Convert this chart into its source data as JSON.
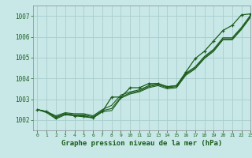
{
  "title": "Graphe pression niveau de la mer (hPa)",
  "bg_color": "#c8e8e8",
  "grid_color": "#a8cccc",
  "line_color": "#1a5c1a",
  "xlim": [
    -0.5,
    23
  ],
  "ylim": [
    1001.5,
    1007.5
  ],
  "yticks": [
    1002,
    1003,
    1004,
    1005,
    1006,
    1007
  ],
  "xticks": [
    0,
    1,
    2,
    3,
    4,
    5,
    6,
    7,
    8,
    9,
    10,
    11,
    12,
    13,
    14,
    15,
    16,
    17,
    18,
    19,
    20,
    21,
    22,
    23
  ],
  "line_main": [
    1002.5,
    1002.4,
    1002.1,
    1002.3,
    1002.2,
    1002.2,
    1002.1,
    1002.4,
    1003.1,
    1003.1,
    1003.55,
    1003.55,
    1003.75,
    1003.75,
    1003.6,
    1003.65,
    1004.3,
    1004.95,
    1005.3,
    1005.8,
    1006.3,
    1006.55,
    1007.05,
    1007.1
  ],
  "line_a": [
    1002.5,
    1002.4,
    1002.15,
    1002.3,
    1002.25,
    1002.25,
    1002.15,
    1002.45,
    1002.55,
    1003.1,
    1003.3,
    1003.4,
    1003.6,
    1003.7,
    1003.55,
    1003.6,
    1004.2,
    1004.5,
    1005.0,
    1005.35,
    1005.9,
    1005.9,
    1006.4,
    1007.0
  ],
  "line_b": [
    1002.5,
    1002.4,
    1002.2,
    1002.35,
    1002.3,
    1002.3,
    1002.2,
    1002.5,
    1002.7,
    1003.2,
    1003.35,
    1003.45,
    1003.65,
    1003.75,
    1003.6,
    1003.65,
    1004.25,
    1004.55,
    1005.05,
    1005.4,
    1005.95,
    1005.95,
    1006.45,
    1007.05
  ],
  "line_c": [
    1002.5,
    1002.35,
    1002.05,
    1002.25,
    1002.2,
    1002.15,
    1002.1,
    1002.4,
    1002.45,
    1003.05,
    1003.25,
    1003.35,
    1003.55,
    1003.65,
    1003.5,
    1003.55,
    1004.15,
    1004.45,
    1004.95,
    1005.3,
    1005.85,
    1005.85,
    1006.35,
    1006.95
  ]
}
